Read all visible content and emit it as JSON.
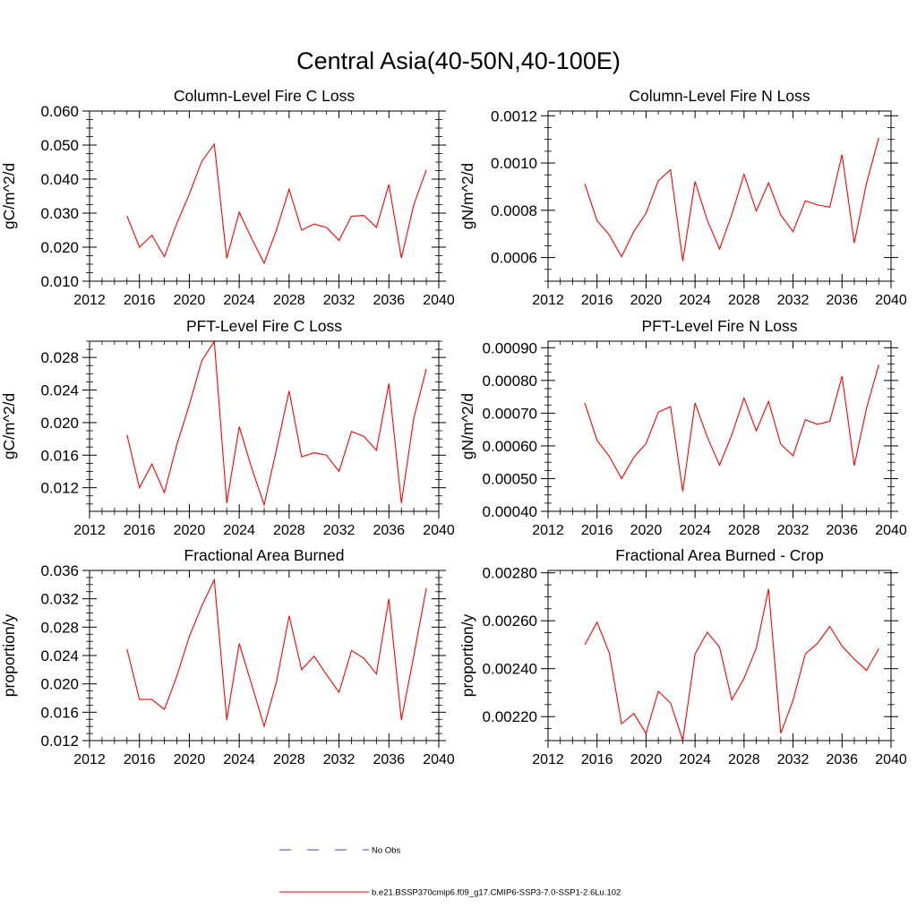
{
  "figure": {
    "title": "Central Asia(40-50N,40-100E)"
  },
  "legend": {
    "items": [
      {
        "label": "No Obs",
        "style": "dashed",
        "color": "#4a4a8a"
      },
      {
        "label": "b.e21.BSSP370cmip6.f09_g17.CMIP6-SSP3-7.0-SSP1-2.6Lu.102",
        "style": "solid",
        "color": "#ff0000"
      }
    ]
  },
  "chart_data": [
    {
      "type": "line",
      "title": "Column-Level Fire C Loss",
      "ylabel": "gC/m^2/d",
      "xlim": [
        2012,
        2040
      ],
      "ylim": [
        0.01,
        0.06
      ],
      "yticks": [
        0.01,
        0.02,
        0.03,
        0.04,
        0.05,
        0.06
      ],
      "yticklabels": [
        "0.010",
        "0.020",
        "0.030",
        "0.040",
        "0.050",
        "0.060"
      ],
      "xticks": [
        2012,
        2016,
        2020,
        2024,
        2028,
        2032,
        2036,
        2040
      ],
      "xticklabels": [
        "2012",
        "2016",
        "2020",
        "2024",
        "2028",
        "2032",
        "2036",
        "2040"
      ],
      "series": [
        {
          "color": "#ff0000",
          "x": [
            2015,
            2016,
            2017,
            2018,
            2019,
            2020,
            2021,
            2022,
            2023,
            2024,
            2025,
            2026,
            2027,
            2028,
            2029,
            2030,
            2031,
            2032,
            2033,
            2034,
            2035,
            2036,
            2037,
            2038,
            2039
          ],
          "y": [
            0.0292,
            0.02,
            0.0235,
            0.0172,
            0.027,
            0.0356,
            0.0452,
            0.0503,
            0.0167,
            0.0303,
            0.0225,
            0.0153,
            0.0252,
            0.037,
            0.025,
            0.0268,
            0.0258,
            0.022,
            0.0291,
            0.0293,
            0.0258,
            0.0384,
            0.0168,
            0.0325,
            0.0427
          ]
        }
      ]
    },
    {
      "type": "line",
      "title": "Column-Level Fire N Loss",
      "ylabel": "gN/m^2/d",
      "xlim": [
        2012,
        2040
      ],
      "ylim": [
        0.0005,
        0.00122
      ],
      "yticks": [
        0.0006,
        0.0008,
        0.001,
        0.0012
      ],
      "yticklabels": [
        "0.0006",
        "0.0008",
        "0.0010",
        "0.0012"
      ],
      "xticks": [
        2012,
        2016,
        2020,
        2024,
        2028,
        2032,
        2036,
        2040
      ],
      "xticklabels": [
        "2012",
        "2016",
        "2020",
        "2024",
        "2028",
        "2032",
        "2036",
        "2040"
      ],
      "series": [
        {
          "color": "#ff0000",
          "x": [
            2015,
            2016,
            2017,
            2018,
            2019,
            2020,
            2021,
            2022,
            2023,
            2024,
            2025,
            2026,
            2027,
            2028,
            2029,
            2030,
            2031,
            2032,
            2033,
            2034,
            2035,
            2036,
            2037,
            2038,
            2039
          ],
          "y": [
            0.000912,
            0.000756,
            0.000696,
            0.000604,
            0.00071,
            0.000788,
            0.000925,
            0.000972,
            0.000585,
            0.000922,
            0.000758,
            0.000636,
            0.000782,
            0.000952,
            0.000797,
            0.000916,
            0.00078,
            0.00071,
            0.00084,
            0.000823,
            0.000813,
            0.001036,
            0.000662,
            0.000915,
            0.001107
          ]
        }
      ]
    },
    {
      "type": "line",
      "title": "PFT-Level Fire C Loss",
      "ylabel": "gC/m^2/d",
      "xlim": [
        2012,
        2040
      ],
      "ylim": [
        0.0091,
        0.03
      ],
      "yticks": [
        0.012,
        0.016,
        0.02,
        0.024,
        0.028
      ],
      "yticklabels": [
        "0.012",
        "0.016",
        "0.020",
        "0.024",
        "0.028"
      ],
      "xticks": [
        2012,
        2016,
        2020,
        2024,
        2028,
        2032,
        2036,
        2040
      ],
      "xticklabels": [
        "2012",
        "2016",
        "2020",
        "2024",
        "2028",
        "2032",
        "2036",
        "2040"
      ],
      "series": [
        {
          "color": "#ff0000",
          "x": [
            2015,
            2016,
            2017,
            2018,
            2019,
            2020,
            2021,
            2022,
            2023,
            2024,
            2025,
            2026,
            2027,
            2028,
            2029,
            2030,
            2031,
            2032,
            2033,
            2034,
            2035,
            2036,
            2037,
            2038,
            2039
          ],
          "y": [
            0.0185,
            0.012,
            0.0149,
            0.0114,
            0.0173,
            0.0222,
            0.0276,
            0.03,
            0.0101,
            0.0195,
            0.0144,
            0.0099,
            0.0168,
            0.0239,
            0.0158,
            0.0163,
            0.016,
            0.014,
            0.0189,
            0.0183,
            0.0166,
            0.0248,
            0.0101,
            0.0206,
            0.0266
          ]
        }
      ]
    },
    {
      "type": "line",
      "title": "PFT-Level Fire N Loss",
      "ylabel": "gN/m^2/d",
      "xlim": [
        2012,
        2040
      ],
      "ylim": [
        0.0004,
        0.00092
      ],
      "yticks": [
        0.0004,
        0.0005,
        0.0006,
        0.0007,
        0.0008,
        0.0009
      ],
      "yticklabels": [
        "0.00040",
        "0.00050",
        "0.00060",
        "0.00070",
        "0.00080",
        "0.00090"
      ],
      "xticks": [
        2012,
        2016,
        2020,
        2024,
        2028,
        2032,
        2036,
        2040
      ],
      "xticklabels": [
        "2012",
        "2016",
        "2020",
        "2024",
        "2028",
        "2032",
        "2036",
        "2040"
      ],
      "series": [
        {
          "color": "#ff0000",
          "x": [
            2015,
            2016,
            2017,
            2018,
            2019,
            2020,
            2021,
            2022,
            2023,
            2024,
            2025,
            2026,
            2027,
            2028,
            2029,
            2030,
            2031,
            2032,
            2033,
            2034,
            2035,
            2036,
            2037,
            2038,
            2039
          ],
          "y": [
            0.000731,
            0.000617,
            0.000568,
            0.0005,
            0.000565,
            0.000607,
            0.000703,
            0.00072,
            0.000461,
            0.000731,
            0.000627,
            0.000541,
            0.000634,
            0.000746,
            0.000646,
            0.000736,
            0.000605,
            0.00057,
            0.00068,
            0.000666,
            0.000675,
            0.000813,
            0.00054,
            0.000715,
            0.000848
          ]
        }
      ]
    },
    {
      "type": "line",
      "title": "Fractional Area Burned",
      "ylabel": "proportion/y",
      "xlim": [
        2012,
        2040
      ],
      "ylim": [
        0.012,
        0.036
      ],
      "yticks": [
        0.012,
        0.016,
        0.02,
        0.024,
        0.028,
        0.032,
        0.036
      ],
      "yticklabels": [
        "0.012",
        "0.016",
        "0.020",
        "0.024",
        "0.028",
        "0.032",
        "0.036"
      ],
      "xticks": [
        2012,
        2016,
        2020,
        2024,
        2028,
        2032,
        2036,
        2040
      ],
      "xticklabels": [
        "2012",
        "2016",
        "2020",
        "2024",
        "2028",
        "2032",
        "2036",
        "2040"
      ],
      "series": [
        {
          "color": "#ff0000",
          "x": [
            2015,
            2016,
            2017,
            2018,
            2019,
            2020,
            2021,
            2022,
            2023,
            2024,
            2025,
            2026,
            2027,
            2028,
            2029,
            2030,
            2031,
            2032,
            2033,
            2034,
            2035,
            2036,
            2037,
            2038,
            2039
          ],
          "y": [
            0.0249,
            0.0178,
            0.0178,
            0.0164,
            0.0211,
            0.0267,
            0.031,
            0.0347,
            0.0149,
            0.0257,
            0.0199,
            0.014,
            0.0204,
            0.0296,
            0.022,
            0.0239,
            0.0213,
            0.0188,
            0.0247,
            0.0236,
            0.0214,
            0.032,
            0.0149,
            0.024,
            0.0335
          ]
        }
      ]
    },
    {
      "type": "line",
      "title": "Fractional Area Burned - Crop",
      "ylabel": "proportion/y",
      "xlim": [
        2012,
        2040
      ],
      "ylim": [
        0.0021,
        0.00281
      ],
      "yticks": [
        0.0022,
        0.0024,
        0.0026,
        0.0028
      ],
      "yticklabels": [
        "0.00220",
        "0.00240",
        "0.00260",
        "0.00280"
      ],
      "xticks": [
        2012,
        2016,
        2020,
        2024,
        2028,
        2032,
        2036,
        2040
      ],
      "xticklabels": [
        "2012",
        "2016",
        "2020",
        "2024",
        "2028",
        "2032",
        "2036",
        "2040"
      ],
      "series": [
        {
          "color": "#ff0000",
          "x": [
            2015,
            2016,
            2017,
            2018,
            2019,
            2020,
            2021,
            2022,
            2023,
            2024,
            2025,
            2026,
            2027,
            2028,
            2029,
            2030,
            2031,
            2032,
            2033,
            2034,
            2035,
            2036,
            2037,
            2038,
            2039
          ],
          "y": [
            0.0025,
            0.002594,
            0.002466,
            0.00217,
            0.002213,
            0.00213,
            0.002306,
            0.002257,
            0.002101,
            0.002461,
            0.002552,
            0.00249,
            0.00227,
            0.00236,
            0.002486,
            0.002733,
            0.00213,
            0.002268,
            0.002461,
            0.002506,
            0.002576,
            0.002494,
            0.00244,
            0.002393,
            0.002484
          ]
        }
      ]
    }
  ]
}
